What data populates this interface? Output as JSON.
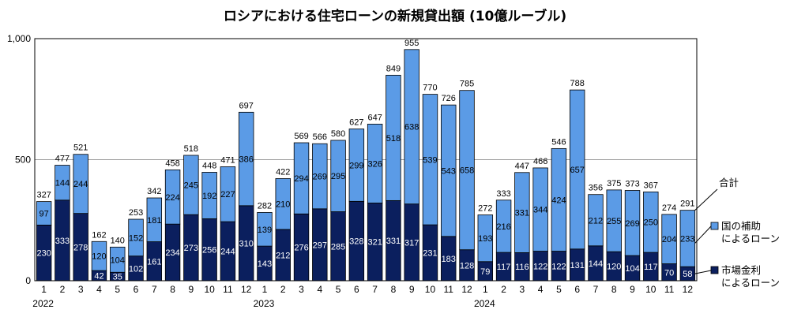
{
  "chart_data": {
    "type": "bar",
    "stacked": true,
    "title": "ロシアにおける住宅ローンの新規貸出額 (10億ルーブル)",
    "xlabel": "",
    "ylabel": "",
    "ylim": [
      0,
      1000
    ],
    "yticks": [
      0,
      500,
      1000
    ],
    "ytick_labels": [
      "0",
      "500",
      "1,000"
    ],
    "gridlines": [
      500
    ],
    "categories": [
      "1",
      "2",
      "3",
      "4",
      "5",
      "6",
      "7",
      "8",
      "9",
      "10",
      "11",
      "12",
      "1",
      "2",
      "3",
      "4",
      "5",
      "6",
      "7",
      "8",
      "9",
      "10",
      "11",
      "12",
      "1",
      "2",
      "3",
      "4",
      "5",
      "6",
      "7",
      "8",
      "9",
      "10",
      "11",
      "12"
    ],
    "year_labels": [
      {
        "label": "2022",
        "index": 0
      },
      {
        "label": "2023",
        "index": 12
      },
      {
        "label": "2024",
        "index": 24
      }
    ],
    "series": [
      {
        "name": "市場金利によるローン",
        "label_lines": [
          "市場金利",
          "によるローン"
        ],
        "color": "#0b1f5e",
        "values": [
          230,
          333,
          278,
          42,
          35,
          102,
          161,
          234,
          273,
          256,
          244,
          310,
          143,
          212,
          276,
          297,
          285,
          328,
          321,
          331,
          317,
          231,
          183,
          128,
          79,
          117,
          116,
          122,
          122,
          131,
          144,
          120,
          104,
          117,
          70,
          58
        ]
      },
      {
        "name": "国の補助によるローン",
        "label_lines": [
          "国の補助",
          "によるローン"
        ],
        "color": "#5b9be6",
        "values": [
          97,
          144,
          244,
          120,
          104,
          152,
          181,
          224,
          245,
          192,
          227,
          386,
          139,
          210,
          294,
          269,
          295,
          299,
          326,
          518,
          638,
          539,
          543,
          658,
          193,
          216,
          331,
          344,
          424,
          657,
          212,
          255,
          269,
          250,
          204,
          233
        ]
      }
    ],
    "totals": [
      327,
      477,
      521,
      162,
      140,
      253,
      342,
      458,
      518,
      448,
      471,
      697,
      282,
      422,
      569,
      566,
      580,
      627,
      647,
      849,
      955,
      770,
      726,
      785,
      272,
      333,
      447,
      466,
      546,
      788,
      356,
      375,
      373,
      367,
      274,
      291
    ],
    "total_label": "合計"
  }
}
